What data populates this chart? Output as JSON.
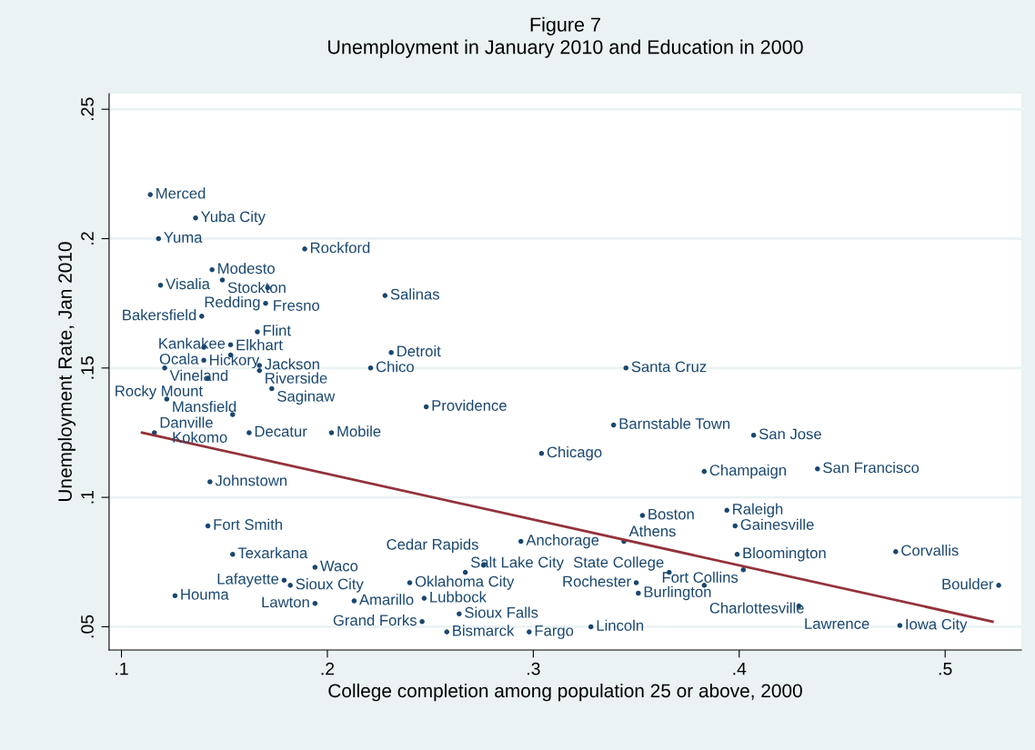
{
  "chart_data": {
    "type": "scatter",
    "title": "Figure 7",
    "subtitle": "Unemployment in January 2010 and Education in 2000",
    "xlabel": "College completion among population 25 or above, 2000",
    "ylabel": "Unemployment Rate, Jan 2010",
    "xlim": [
      0.094,
      0.537
    ],
    "ylim": [
      0.041,
      0.256
    ],
    "xticks": [
      {
        "value": 0.1,
        "label": ".1"
      },
      {
        "value": 0.2,
        "label": ".2"
      },
      {
        "value": 0.3,
        "label": ".3"
      },
      {
        "value": 0.4,
        "label": ".4"
      },
      {
        "value": 0.5,
        "label": ".5"
      }
    ],
    "yticks": [
      {
        "value": 0.05,
        "label": ".05"
      },
      {
        "value": 0.1,
        "label": ".1"
      },
      {
        "value": 0.15,
        "label": ".15"
      },
      {
        "value": 0.2,
        "label": ".2"
      },
      {
        "value": 0.25,
        "label": ".25"
      }
    ],
    "grid": "y",
    "series": [
      {
        "color": "#1a476f",
        "marker": "circle",
        "x": [
          0.114,
          0.136,
          0.118,
          0.189,
          0.144,
          0.119,
          0.149,
          0.171,
          0.17,
          0.228,
          0.139,
          0.166,
          0.153,
          0.14,
          0.153,
          0.14,
          0.231,
          0.167,
          0.121,
          0.167,
          0.221,
          0.345,
          0.142,
          0.173,
          0.122,
          0.248,
          0.339,
          0.407,
          0.116,
          0.162,
          0.202,
          0.154,
          0.304,
          0.383,
          0.438,
          0.143,
          0.142,
          0.154,
          0.394,
          0.398,
          0.344,
          0.294,
          0.399,
          0.476,
          0.402,
          0.366,
          0.351,
          0.35,
          0.383,
          0.429,
          0.478,
          0.526,
          0.328,
          0.298,
          0.258,
          0.246,
          0.264,
          0.247,
          0.213,
          0.194,
          0.126,
          0.182,
          0.179,
          0.194,
          0.24,
          0.267,
          0.276,
          0.353
        ],
        "values": [
          0.217,
          0.208,
          0.2,
          0.196,
          0.188,
          0.182,
          0.184,
          0.181,
          0.175,
          0.178,
          0.17,
          0.164,
          0.159,
          0.158,
          0.155,
          0.153,
          0.156,
          0.151,
          0.15,
          0.149,
          0.15,
          0.15,
          0.146,
          0.142,
          0.138,
          0.135,
          0.128,
          0.124,
          0.125,
          0.125,
          0.125,
          0.132,
          0.117,
          0.11,
          0.111,
          0.106,
          0.089,
          0.078,
          0.095,
          0.089,
          0.083,
          0.083,
          0.078,
          0.079,
          0.072,
          0.071,
          0.063,
          0.067,
          0.066,
          0.058,
          0.0505,
          0.066,
          0.05,
          0.048,
          0.048,
          0.052,
          0.055,
          0.061,
          0.06,
          0.059,
          0.062,
          0.066,
          0.068,
          0.073,
          0.067,
          0.071,
          0.074,
          0.093
        ],
        "value_labels": [
          "Merced",
          "Yuba City",
          "Yuma",
          "Rockford",
          "Modesto",
          "Visalia",
          "Stockton",
          "Fresno",
          "Redding",
          "Salinas",
          "Bakersfield",
          "Flint",
          "Kankakee",
          "Hickory",
          "Elkhart",
          "Ocala",
          "Detroit",
          "Jackson",
          "Vineland",
          "Riverside",
          "Chico",
          "Santa Cruz",
          "Rocky Mount",
          "Saginaw",
          "Mansfield",
          "Providence",
          "Barnstable Town",
          "San Jose",
          "Danville",
          "Decatur",
          "Mobile",
          "Kokomo",
          "Chicago",
          "Champaign",
          "San Francisco",
          "Johnstown",
          "Fort Smith",
          "Texarkana",
          "Raleigh",
          "Gainesville",
          "Athens",
          "Anchorage",
          "Bloomington",
          "Corvallis",
          "Fort Collins",
          "State College",
          "Burlington",
          "Rochester",
          "Charlottesville",
          "Lawrence",
          "Iowa City",
          "Boulder",
          "Lincoln",
          "Fargo",
          "Bismarck",
          "Grand Forks",
          "Sioux Falls",
          "Lubbock",
          "Amarillo",
          "Lawton",
          "Houma",
          "Sioux City",
          "Lafayette",
          "Waco",
          "Oklahoma City",
          "Salt Lake City",
          "Cedar Rapids",
          "Boston"
        ]
      },
      {
        "type": "line",
        "color": "#93323a",
        "x": [
          0.11,
          0.523
        ],
        "values": [
          0.125,
          0.052
        ]
      }
    ]
  }
}
